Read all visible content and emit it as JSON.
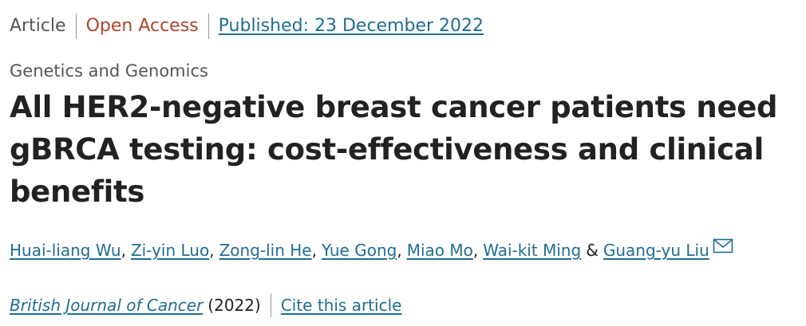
{
  "header": {
    "article_type": "Article",
    "access": "Open Access",
    "published": "Published: 23 December 2022"
  },
  "subject": "Genetics and Genomics",
  "title": "All HER2-negative breast cancer patients need gBRCA testing: cost-effectiveness and clinical benefits",
  "authors": [
    "Huai-liang Wu",
    "Zi-yin Luo",
    "Zong-lin He",
    "Yue Gong",
    "Miao Mo",
    "Wai-kit Ming",
    "Guang-yu Liu"
  ],
  "author_separator": ",",
  "author_conjunction": "&",
  "citation": {
    "journal": "British Journal of Cancer",
    "year": "(2022)",
    "cite_link": "Cite this article"
  },
  "colors": {
    "link": "#1f6d94",
    "open_access": "#b0452a",
    "muted": "#555555",
    "text": "#222222"
  },
  "icons": {
    "corresponding_author": "mail-envelope-icon"
  }
}
